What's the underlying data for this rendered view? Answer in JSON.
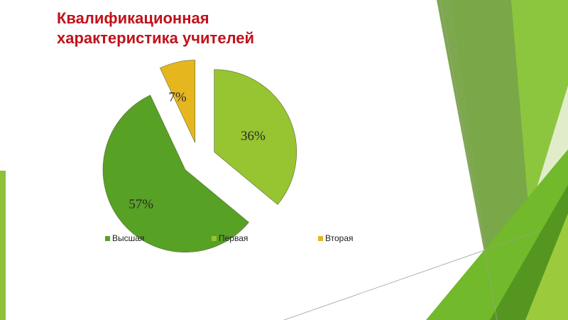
{
  "slide": {
    "title_line1": "Квалификационная",
    "title_line2": "характеристика учителей"
  },
  "chart_data": {
    "type": "pie",
    "title": "Квалификационная характеристика учителей",
    "slices": [
      {
        "name": "Высшая",
        "value": 57,
        "label": "57%",
        "color": "#57a125"
      },
      {
        "name": "Первая",
        "value": 36,
        "label": "36%",
        "color": "#97c431"
      },
      {
        "name": "Вторая",
        "value": 7,
        "label": "7%",
        "color": "#e6b61f"
      }
    ],
    "exploded": true,
    "legend_position": "bottom",
    "legend_items": [
      "Высшая",
      "Первая",
      "Вторая"
    ]
  },
  "colors": {
    "title": "#c0121c",
    "decor_dark_green": "#4e8f1f",
    "decor_light_green": "#8fc13a"
  }
}
